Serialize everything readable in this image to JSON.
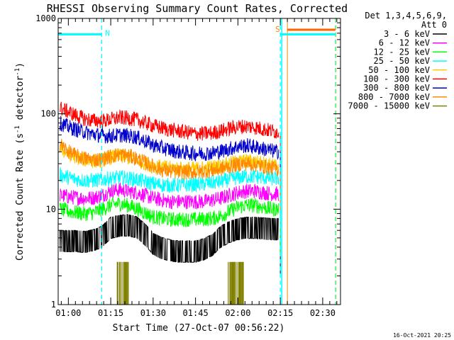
{
  "chart_data": {
    "type": "line",
    "title": "RHESSI Observing Summary Count Rates, Corrected",
    "xlabel": "Start Time (27-Oct-07 00:56:22)",
    "ylabel_main": "Corrected Count Rate (s",
    "ylabel_sup1": "-1",
    "ylabel_mid": " detector",
    "ylabel_sup2": "-1",
    "ylabel_end": ")",
    "y_scale": "log",
    "ylim": [
      1,
      1000
    ],
    "xlim_minutes": [
      56.4,
      156.3
    ],
    "x_ticks": [
      {
        "label": "01:00",
        "min": 60
      },
      {
        "label": "01:15",
        "min": 75
      },
      {
        "label": "01:30",
        "min": 90
      },
      {
        "label": "01:45",
        "min": 105
      },
      {
        "label": "02:00",
        "min": 120
      },
      {
        "label": "02:15",
        "min": 135
      },
      {
        "label": "02:30",
        "min": 150
      }
    ],
    "y_ticks": [
      {
        "label": "1",
        "value": 1
      },
      {
        "label": "10",
        "value": 10
      },
      {
        "label": "100",
        "value": 100
      },
      {
        "label": "1000",
        "value": 1000
      }
    ],
    "legend_header_1": "Det 1,3,4,5,6,9,",
    "legend_header_2": "Att 0",
    "legend_placement": "right",
    "series": [
      {
        "name": "3 - 6 keV",
        "color": "#000000",
        "x": [
          57,
          60,
          63,
          66,
          69,
          72,
          75,
          78,
          81,
          84,
          87,
          90,
          93,
          96,
          99,
          102,
          105,
          108,
          111,
          114,
          117,
          120,
          123,
          126,
          129,
          132,
          134.5
        ],
        "y": [
          4.5,
          4.5,
          4.5,
          4.4,
          4.6,
          5.0,
          6.2,
          6.5,
          6.6,
          6.3,
          5.3,
          4.2,
          3.8,
          3.6,
          3.5,
          3.5,
          3.5,
          3.7,
          4.1,
          5.0,
          5.6,
          6.0,
          6.2,
          6.2,
          6.1,
          6.0,
          6.0
        ]
      },
      {
        "name": "6 - 12 keV",
        "color": "#ff00ff",
        "x": [
          57,
          60,
          63,
          66,
          69,
          72,
          75,
          78,
          81,
          84,
          87,
          90,
          93,
          96,
          99,
          102,
          105,
          108,
          111,
          114,
          117,
          120,
          123,
          126,
          129,
          132,
          134.5
        ],
        "y": [
          14,
          13.5,
          13.2,
          13,
          13.2,
          14,
          15.5,
          16,
          15.5,
          15,
          14,
          13,
          12.5,
          12,
          12,
          12,
          12,
          12,
          12.5,
          13,
          14,
          15,
          15.5,
          15.5,
          15,
          14.5,
          14.5
        ]
      },
      {
        "name": "12 - 25 keV",
        "color": "#00ff00",
        "x": [
          57,
          60,
          63,
          66,
          69,
          72,
          75,
          78,
          81,
          84,
          87,
          90,
          93,
          96,
          99,
          102,
          105,
          108,
          111,
          114,
          117,
          120,
          123,
          126,
          129,
          132,
          134.5
        ],
        "y": [
          10,
          9.5,
          9.2,
          9.0,
          9.2,
          10,
          11,
          11.5,
          11,
          10.2,
          9.2,
          8.3,
          8.0,
          7.8,
          7.8,
          7.8,
          7.8,
          7.9,
          8.0,
          8.5,
          9.5,
          10.5,
          11,
          11,
          10.5,
          10,
          10
        ]
      },
      {
        "name": "25 - 50 keV",
        "color": "#00ffff",
        "x": [
          57,
          60,
          63,
          66,
          69,
          72,
          75,
          78,
          81,
          84,
          87,
          90,
          93,
          96,
          99,
          102,
          105,
          108,
          111,
          114,
          117,
          120,
          123,
          126,
          129,
          132,
          134.5
        ],
        "y": [
          23,
          21.5,
          20.5,
          20,
          20,
          20.5,
          21,
          21.5,
          21,
          20.5,
          19.5,
          18.5,
          18,
          17.8,
          17.8,
          18,
          18.2,
          18.5,
          19,
          19.5,
          20.5,
          21.5,
          22,
          22,
          21.5,
          21,
          21
        ]
      },
      {
        "name": "50 - 100 keV",
        "color": "#ffcc00",
        "x": [
          57,
          60,
          63,
          66,
          69,
          72,
          75,
          78,
          81,
          84,
          87,
          90,
          93,
          96,
          99,
          102,
          105,
          108,
          111,
          114,
          117,
          120,
          123,
          126,
          129,
          132,
          134.5
        ],
        "y": [
          44,
          38,
          35,
          33,
          32,
          32.5,
          35,
          36,
          35,
          33,
          30.5,
          28.5,
          27.5,
          27,
          26.5,
          26.5,
          26.5,
          27,
          27.5,
          28.5,
          30,
          31.5,
          32,
          31.5,
          30.5,
          29,
          28.5
        ]
      },
      {
        "name": "100 - 300 keV",
        "color": "#ff0000",
        "x": [
          57,
          60,
          63,
          66,
          69,
          72,
          75,
          78,
          81,
          84,
          87,
          90,
          93,
          96,
          99,
          102,
          105,
          108,
          111,
          114,
          117,
          120,
          123,
          126,
          129,
          132,
          134.5
        ],
        "y": [
          115,
          105,
          95,
          88,
          85,
          84,
          87,
          91,
          90,
          87,
          81,
          75,
          71,
          68,
          66,
          64,
          62,
          62,
          63,
          66,
          70,
          73,
          74,
          72,
          69,
          66,
          64
        ]
      },
      {
        "name": "300 - 800 keV",
        "color": "#0000cc",
        "x": [
          57,
          60,
          63,
          66,
          69,
          72,
          75,
          78,
          81,
          84,
          87,
          90,
          93,
          96,
          99,
          102,
          105,
          108,
          111,
          114,
          117,
          120,
          123,
          126,
          129,
          132,
          134.5
        ],
        "y": [
          80,
          73,
          68,
          64,
          61,
          59,
          58.5,
          60,
          59,
          57,
          52,
          47,
          44,
          42,
          40,
          39,
          38.5,
          38.5,
          39,
          40.5,
          43,
          45.5,
          46.5,
          45,
          43,
          41,
          40
        ]
      },
      {
        "name": "800 - 7000 keV",
        "color": "#ff8800",
        "x": [
          57,
          60,
          63,
          66,
          69,
          72,
          75,
          78,
          81,
          84,
          87,
          90,
          93,
          96,
          99,
          102,
          105,
          108,
          111,
          114,
          117,
          120,
          123,
          126,
          129,
          132,
          134.5
        ],
        "y": [
          48,
          40,
          36,
          34,
          33,
          33.5,
          36,
          37.5,
          36.5,
          34,
          31,
          28,
          26,
          25,
          24.5,
          24.5,
          24.5,
          25,
          25.5,
          26.5,
          28,
          29.5,
          30,
          29.5,
          28,
          27,
          26
        ]
      },
      {
        "name": "7000 - 15000 keV",
        "color": "#808000",
        "bursts": [
          [
            77.3,
            81.8
          ],
          [
            116.6,
            122.0
          ]
        ],
        "burst_peak": 2.8
      }
    ],
    "annotations": {
      "attenuator_state_label": "N",
      "saa_label": "S",
      "night_start_min": 71.8,
      "saa_start_min": 135.0,
      "saa_end_min": 154.5,
      "night_bar_level": 680,
      "saa_bar_level": 680,
      "saa_bar2_level": 760
    }
  },
  "footer": {
    "timestamp": "16-Oct-2021 20:25"
  }
}
